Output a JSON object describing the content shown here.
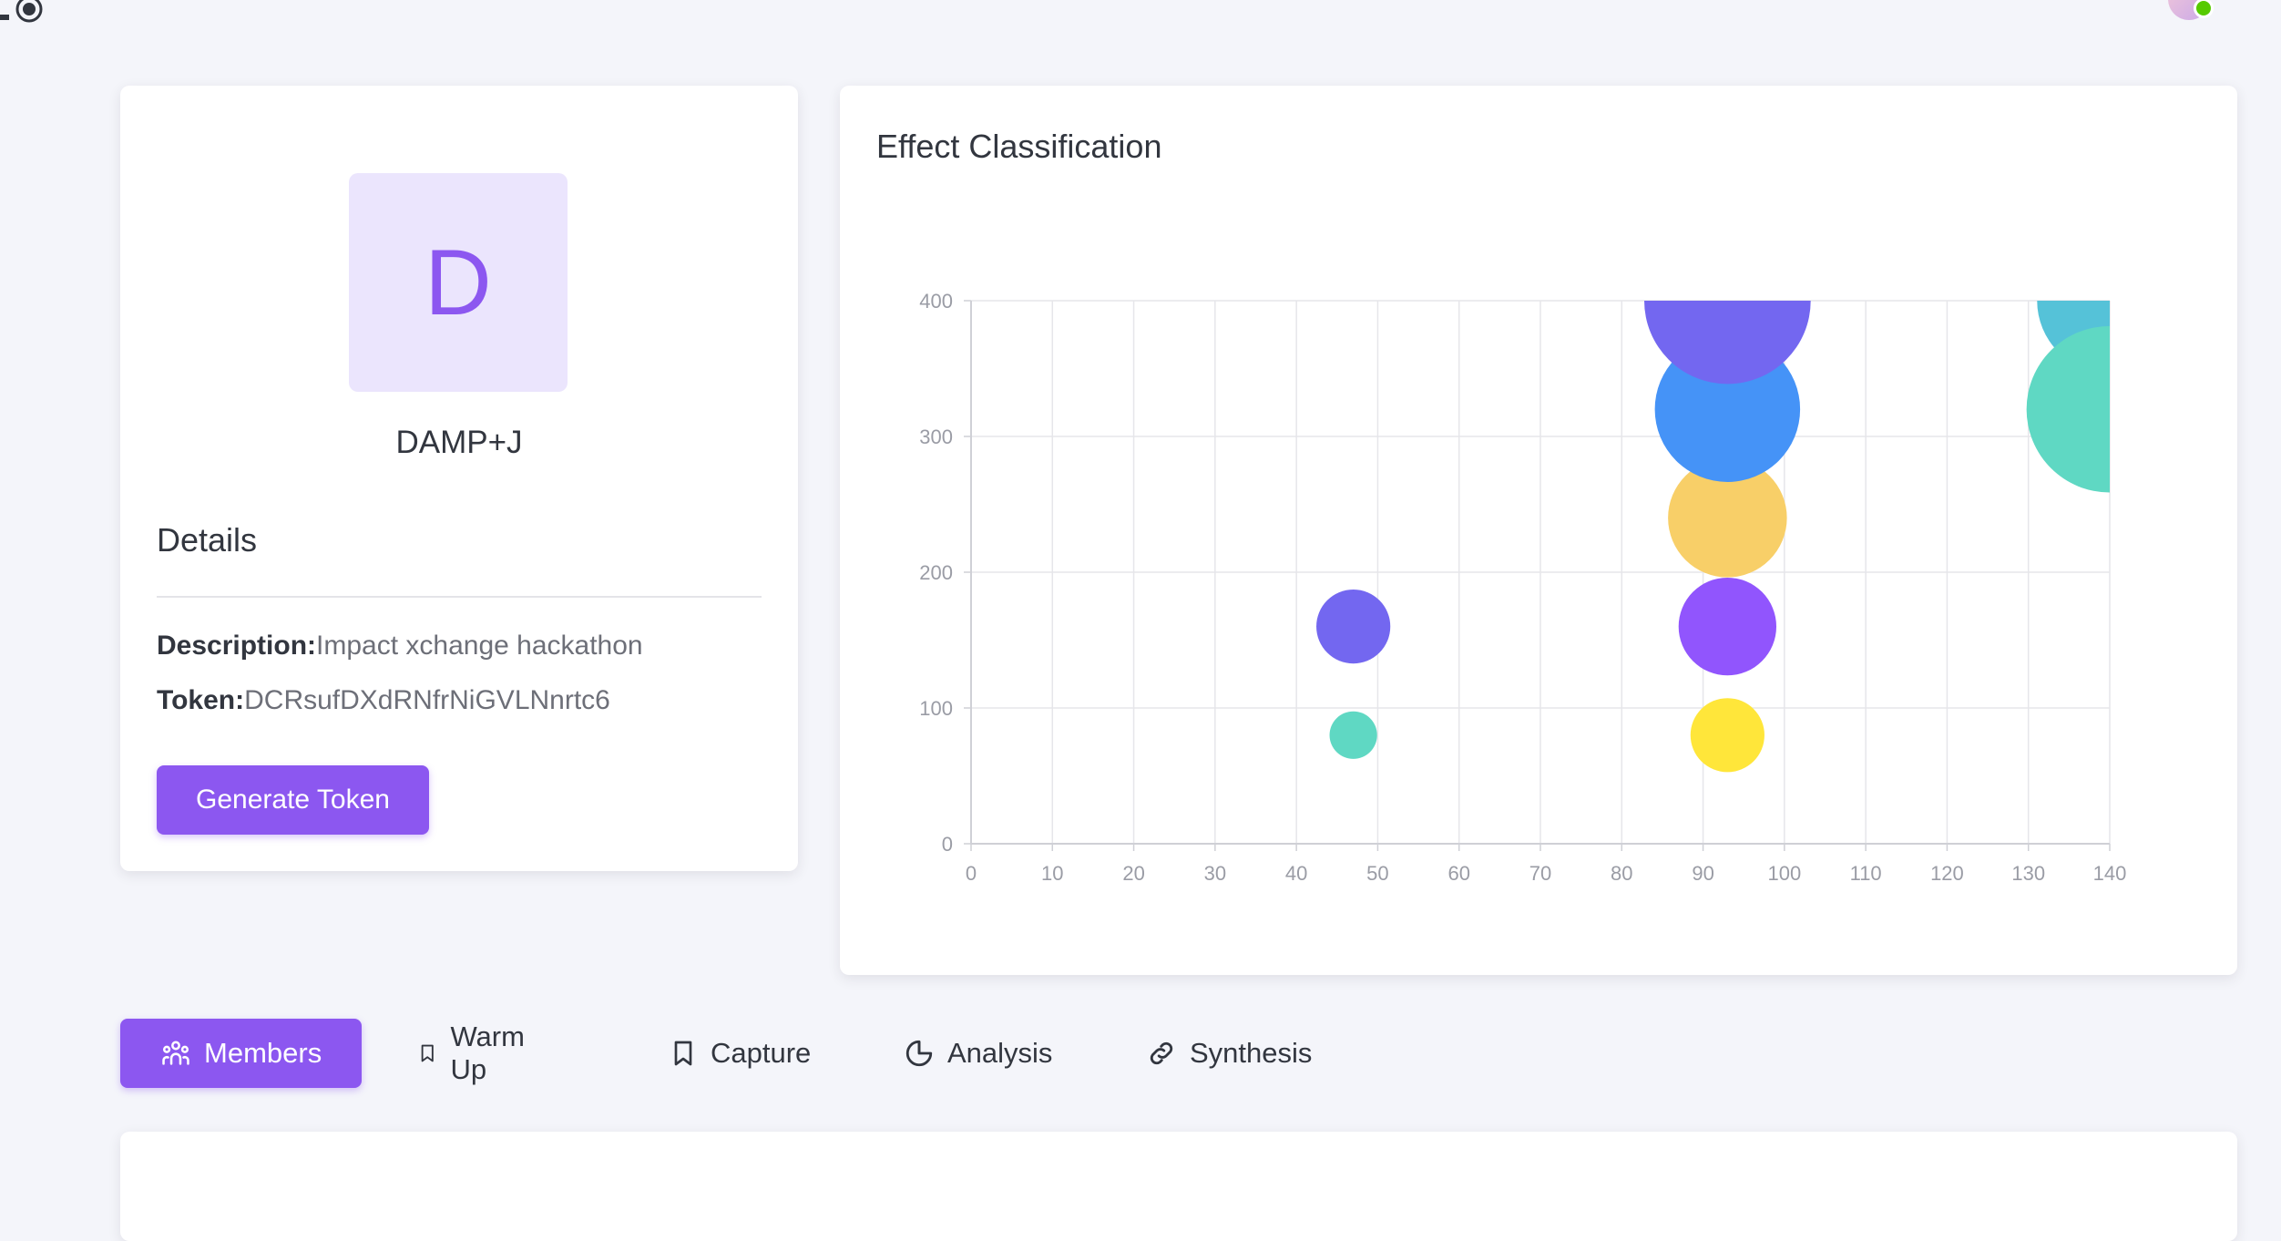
{
  "header": {
    "record_icon": "radio-record-icon",
    "avatar_icon": "user-avatar-icon",
    "online_color": "#56ca00"
  },
  "profile": {
    "logo_letter": "D",
    "name": "DAMP+J",
    "details_title": "Details",
    "description_label": "Description:",
    "description_value": "Impact xchange hackathon",
    "token_label": "Token:",
    "token_value": "DCRsufDXdRNfrNiGVLNnrtc6",
    "generate_button": "Generate Token"
  },
  "chart": {
    "title": "Effect Classification"
  },
  "chart_data": {
    "type": "scatter",
    "title": "Effect Classification",
    "xlabel": "",
    "ylabel": "",
    "xlim": [
      0,
      140
    ],
    "ylim": [
      0,
      400
    ],
    "x_ticks": [
      0,
      10,
      20,
      30,
      40,
      50,
      60,
      70,
      80,
      90,
      100,
      110,
      120,
      130,
      140
    ],
    "y_ticks": [
      0,
      100,
      200,
      300,
      400
    ],
    "grid": true,
    "points": [
      {
        "x": 47,
        "y": 80,
        "r": 18,
        "color": "#5fd8c3"
      },
      {
        "x": 47,
        "y": 160,
        "r": 28,
        "color": "#7367f0"
      },
      {
        "x": 93,
        "y": 80,
        "r": 28,
        "color": "#ffe63a"
      },
      {
        "x": 93,
        "y": 160,
        "r": 37,
        "color": "#9155fd"
      },
      {
        "x": 93,
        "y": 240,
        "r": 45,
        "color": "#f8cf68"
      },
      {
        "x": 93,
        "y": 320,
        "r": 55,
        "color": "#4593f7"
      },
      {
        "x": 93,
        "y": 400,
        "r": 63,
        "color": "#7367f0"
      },
      {
        "x": 140,
        "y": 400,
        "r": 55,
        "color": "#55c2d8"
      },
      {
        "x": 140,
        "y": 320,
        "r": 63,
        "color": "#5fd8c3"
      }
    ]
  },
  "tabs": [
    {
      "label": "Members",
      "icon": "members-icon",
      "active": true
    },
    {
      "label": "Warm Up",
      "icon": "bookmark-icon",
      "active": false
    },
    {
      "label": "Capture",
      "icon": "bookmark-icon",
      "active": false
    },
    {
      "label": "Analysis",
      "icon": "pie-chart-icon",
      "active": false
    },
    {
      "label": "Synthesis",
      "icon": "link-icon",
      "active": false
    }
  ],
  "colors": {
    "primary": "#8c57f0",
    "primary_light": "#ebe5fd",
    "background": "#f4f5fa"
  }
}
